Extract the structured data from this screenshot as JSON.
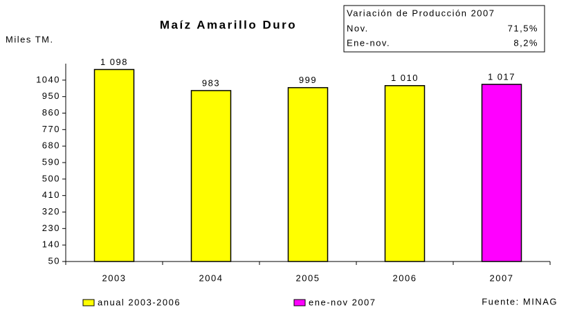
{
  "chart_data": {
    "type": "bar",
    "title": "Maíz Amarillo Duro",
    "y_label": "Miles TM.",
    "source": "Fuente: MINAG",
    "categories": [
      "2003",
      "2004",
      "2005",
      "2006",
      "2007"
    ],
    "series": [
      {
        "name": "anual 2003-2006",
        "color": "#ffff00",
        "values": [
          1098,
          983,
          999,
          1010,
          null
        ],
        "value_labels": [
          "1 098",
          "983",
          "999",
          "1 010",
          null
        ]
      },
      {
        "name": "ene-nov 2007",
        "color": "#ff00ff",
        "values": [
          null,
          null,
          null,
          null,
          1017
        ],
        "value_labels": [
          null,
          null,
          null,
          null,
          "1 017"
        ]
      }
    ],
    "ylim": [
      50,
      1130
    ],
    "yticks": [
      50,
      140,
      230,
      320,
      410,
      500,
      590,
      680,
      770,
      860,
      950,
      1040
    ],
    "annotation_box": {
      "title": "Variación de Producción 2007",
      "rows": [
        [
          "Nov.",
          "71,5%"
        ],
        [
          "Ene-nov.",
          "8,2%"
        ]
      ]
    }
  }
}
